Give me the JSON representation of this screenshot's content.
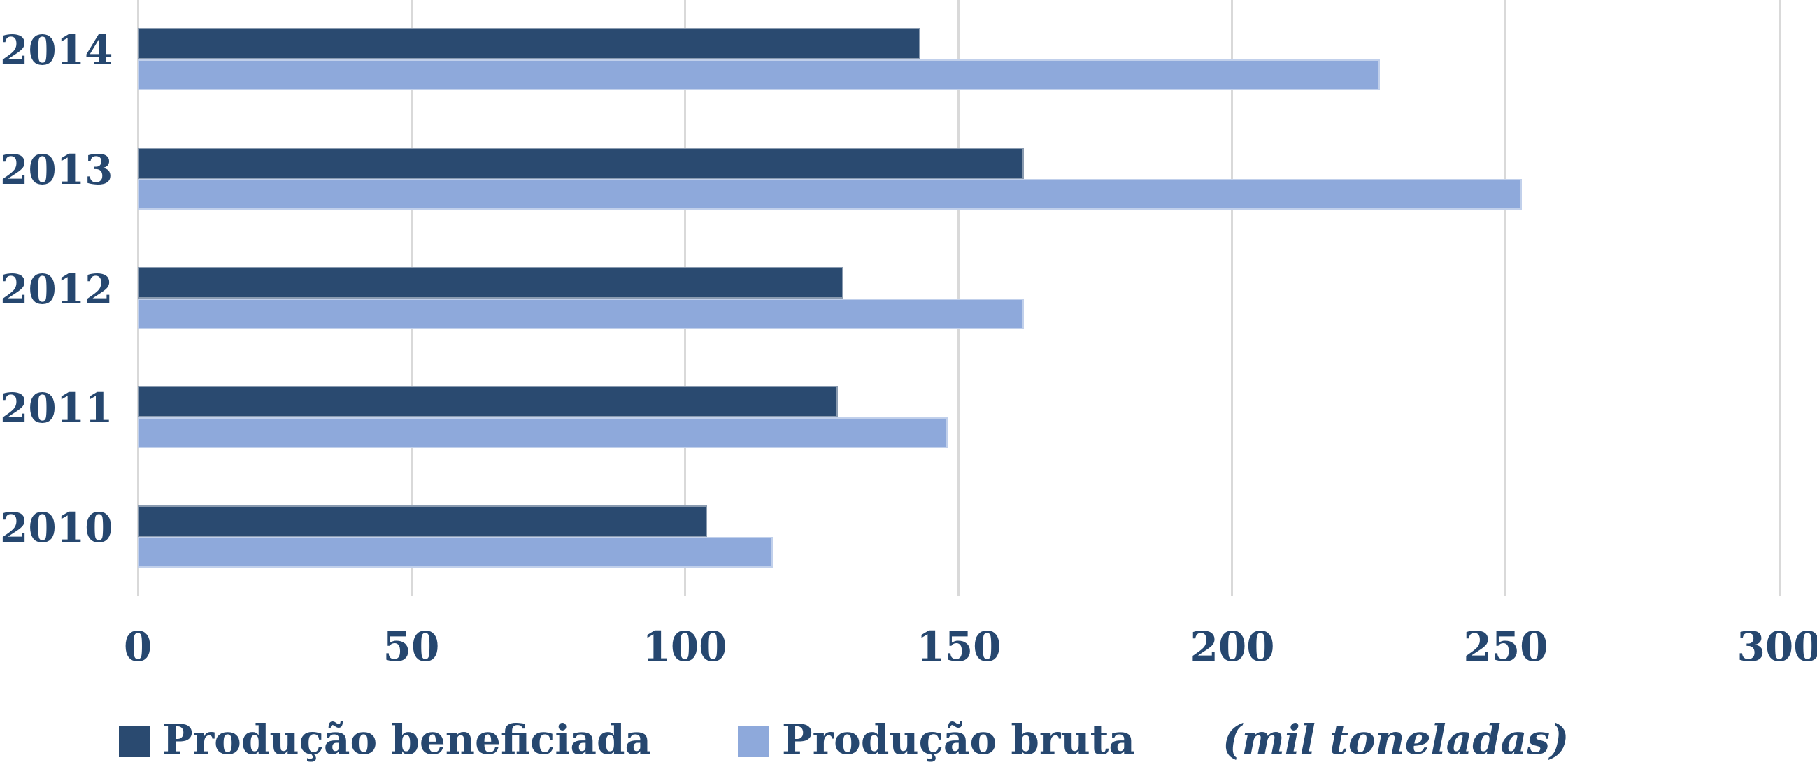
{
  "chart_data": {
    "type": "bar",
    "orientation": "horizontal",
    "title": "",
    "categories": [
      "2014",
      "2013",
      "2012",
      "2011",
      "2010"
    ],
    "series": [
      {
        "name": "Produção beneficiada",
        "color": "#2A4A70",
        "values": [
          143,
          162,
          129,
          128,
          104
        ]
      },
      {
        "name": "Produção bruta",
        "color": "#8EA9DB",
        "values": [
          227,
          253,
          162,
          148,
          116
        ]
      }
    ],
    "xlabel": "",
    "ylabel": "",
    "xlim": [
      0,
      300
    ],
    "xticks": [
      0,
      50,
      100,
      150,
      200,
      250,
      300
    ],
    "grid": "vertical",
    "legend_position": "bottom",
    "unit_note": "(mil toneladas)"
  },
  "legend": {
    "items": [
      {
        "label": "Produção beneficiada",
        "color": "#2A4A70"
      },
      {
        "label": "Produção bruta",
        "color": "#8EA9DB"
      }
    ],
    "unit_note": "(mil toneladas)"
  },
  "colors": {
    "bar_dark": "#2A4A70",
    "bar_light": "#8EA9DB",
    "label_text": "#26476F",
    "gridline": "#D9D9D9",
    "background": "#FFFFFF"
  }
}
